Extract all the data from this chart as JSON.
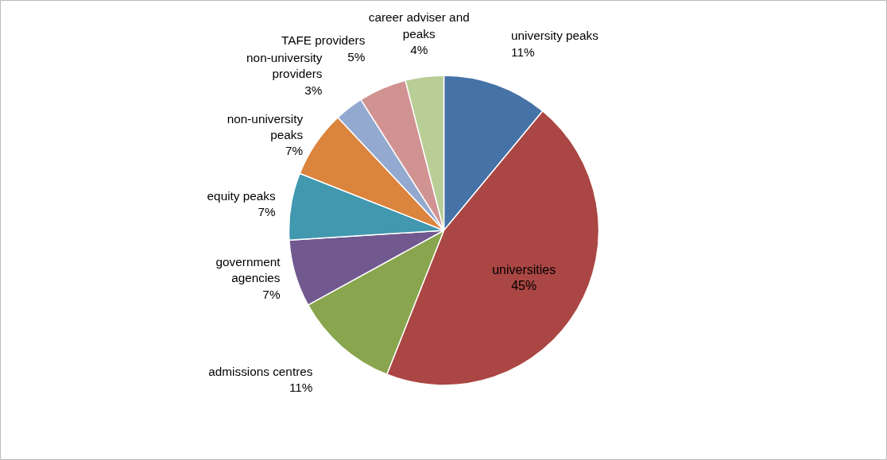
{
  "chart_data": {
    "type": "pie",
    "categories": [
      "university peaks",
      "universities",
      "admissions centres",
      "government agencies",
      "equity peaks",
      "non-university peaks",
      "non-university providers",
      "TAFE providers",
      "career adviser and peaks"
    ],
    "values": [
      11,
      45,
      11,
      7,
      7,
      7,
      3,
      5,
      4
    ],
    "colors": [
      "#4572a7",
      "#aa4643",
      "#89a54e",
      "#71588f",
      "#4198af",
      "#db843d",
      "#93a9cf",
      "#d19392",
      "#b9cd96"
    ],
    "value_labels": [
      "11%",
      "45%",
      "11%",
      "7%",
      "7%",
      "7%",
      "3%",
      "5%",
      "4%"
    ]
  }
}
